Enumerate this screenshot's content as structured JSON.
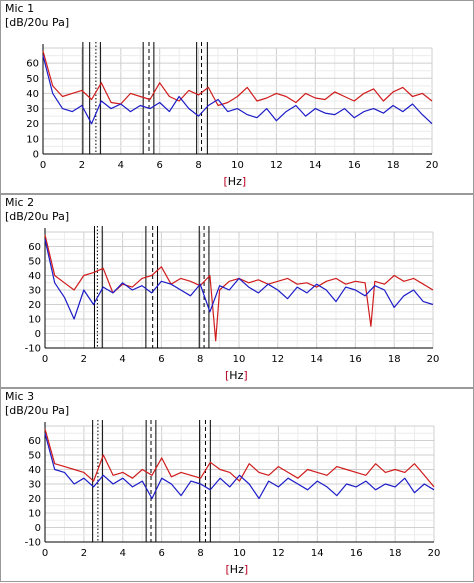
{
  "chart_data": [
    {
      "type": "line",
      "title": "Mic 1",
      "ylabel": "[dB/20u Pa]",
      "xlabel": "Hz",
      "xlim": [
        0,
        20
      ],
      "ylim": [
        0,
        70
      ],
      "xticks": [
        0,
        2,
        4,
        6,
        8,
        10,
        12,
        14,
        16,
        18,
        20
      ],
      "yticks": [
        0,
        10,
        20,
        30,
        40,
        50,
        60
      ],
      "grid": true,
      "series": [
        {
          "color": "#d01c1c",
          "x": [
            0,
            0.5,
            1,
            1.5,
            2,
            2.5,
            3,
            3.5,
            4,
            4.5,
            5,
            5.5,
            6,
            6.5,
            7,
            7.5,
            8,
            8.5,
            9,
            9.5,
            10,
            10.5,
            11,
            11.5,
            12,
            12.5,
            13,
            13.5,
            14,
            14.5,
            15,
            15.5,
            16,
            16.5,
            17,
            17.5,
            18,
            18.5,
            19,
            19.5,
            20
          ],
          "values": [
            68,
            45,
            38,
            40,
            42,
            36,
            47,
            34,
            33,
            40,
            38,
            36,
            47,
            38,
            35,
            42,
            39,
            44,
            32,
            34,
            38,
            44,
            35,
            37,
            40,
            38,
            34,
            40,
            37,
            36,
            41,
            38,
            35,
            40,
            43,
            35,
            41,
            44,
            38,
            40,
            35
          ]
        },
        {
          "color": "#1c1cc8",
          "x": [
            0,
            0.5,
            1,
            1.5,
            2,
            2.5,
            3,
            3.5,
            4,
            4.5,
            5,
            5.5,
            6,
            6.5,
            7,
            7.5,
            8,
            8.5,
            9,
            9.5,
            10,
            10.5,
            11,
            11.5,
            12,
            12.5,
            13,
            13.5,
            14,
            14.5,
            15,
            15.5,
            16,
            16.5,
            17,
            17.5,
            18,
            18.5,
            19,
            19.5,
            20
          ],
          "values": [
            65,
            40,
            30,
            28,
            32,
            20,
            35,
            30,
            33,
            28,
            32,
            30,
            34,
            28,
            38,
            30,
            25,
            32,
            36,
            28,
            30,
            26,
            24,
            30,
            22,
            28,
            32,
            25,
            30,
            27,
            26,
            30,
            24,
            28,
            30,
            27,
            32,
            28,
            33,
            26,
            20
          ]
        }
      ],
      "markers": [
        {
          "x": 2.05,
          "style": "solid"
        },
        {
          "x": 2.4,
          "style": "solid"
        },
        {
          "x": 2.72,
          "style": "dotted"
        },
        {
          "x": 2.95,
          "style": "solid"
        },
        {
          "x": 5.15,
          "style": "solid"
        },
        {
          "x": 5.45,
          "style": "dashed"
        },
        {
          "x": 5.7,
          "style": "solid"
        },
        {
          "x": 7.9,
          "style": "solid"
        },
        {
          "x": 8.15,
          "style": "dashed"
        },
        {
          "x": 8.45,
          "style": "solid"
        }
      ]
    },
    {
      "type": "line",
      "title": "Mic 2",
      "ylabel": "[dB/20u Pa]",
      "xlabel": "Hz",
      "xlim": [
        0,
        20
      ],
      "ylim": [
        -10,
        70
      ],
      "xticks": [
        0,
        2,
        4,
        6,
        8,
        10,
        12,
        14,
        16,
        18,
        20
      ],
      "yticks": [
        -10,
        0,
        10,
        20,
        30,
        40,
        50,
        60
      ],
      "grid": true,
      "series": [
        {
          "color": "#d01c1c",
          "x": [
            0,
            0.5,
            1,
            1.5,
            2,
            2.5,
            3,
            3.5,
            4,
            4.5,
            5,
            5.5,
            6,
            6.5,
            7,
            7.5,
            8,
            8.5,
            8.8,
            9,
            9.5,
            10,
            10.5,
            11,
            11.5,
            12,
            12.5,
            13,
            13.5,
            14,
            14.5,
            15,
            15.5,
            16,
            16.5,
            16.8,
            17,
            17.5,
            18,
            18.5,
            19,
            19.5,
            20
          ],
          "values": [
            68,
            40,
            35,
            30,
            40,
            42,
            45,
            28,
            34,
            32,
            38,
            40,
            46,
            34,
            38,
            36,
            33,
            40,
            -5,
            30,
            36,
            38,
            35,
            37,
            34,
            36,
            38,
            34,
            35,
            32,
            36,
            38,
            34,
            36,
            35,
            5,
            36,
            34,
            40,
            36,
            38,
            34,
            30
          ]
        },
        {
          "color": "#1c1cc8",
          "x": [
            0,
            0.5,
            1,
            1.5,
            2,
            2.5,
            3,
            3.5,
            4,
            4.5,
            5,
            5.5,
            6,
            6.5,
            7,
            7.5,
            8,
            8.5,
            9,
            9.5,
            10,
            10.5,
            11,
            11.5,
            12,
            12.5,
            13,
            13.5,
            14,
            14.5,
            15,
            15.5,
            16,
            16.5,
            17,
            17.5,
            18,
            18.5,
            19,
            19.5,
            20
          ],
          "values": [
            65,
            35,
            25,
            10,
            30,
            20,
            32,
            28,
            35,
            30,
            33,
            28,
            36,
            34,
            30,
            26,
            34,
            15,
            33,
            30,
            38,
            32,
            28,
            34,
            30,
            24,
            32,
            28,
            34,
            30,
            22,
            32,
            30,
            26,
            33,
            30,
            18,
            26,
            30,
            22,
            20
          ]
        }
      ],
      "markers": [
        {
          "x": 2.55,
          "style": "solid"
        },
        {
          "x": 2.7,
          "style": "dotted"
        },
        {
          "x": 2.95,
          "style": "solid"
        },
        {
          "x": 5.2,
          "style": "solid"
        },
        {
          "x": 5.55,
          "style": "dashed"
        },
        {
          "x": 5.8,
          "style": "solid"
        },
        {
          "x": 7.95,
          "style": "solid"
        },
        {
          "x": 8.2,
          "style": "dashed"
        },
        {
          "x": 8.45,
          "style": "solid"
        }
      ]
    },
    {
      "type": "line",
      "title": "Mic 3",
      "ylabel": "[dB/20u Pa]",
      "xlabel": "Hz",
      "xlim": [
        0,
        20
      ],
      "ylim": [
        -10,
        70
      ],
      "xticks": [
        0,
        2,
        4,
        6,
        8,
        10,
        12,
        14,
        16,
        18,
        20
      ],
      "yticks": [
        -10,
        0,
        10,
        20,
        30,
        40,
        50,
        60
      ],
      "grid": true,
      "series": [
        {
          "color": "#d01c1c",
          "x": [
            0,
            0.5,
            1,
            1.5,
            2,
            2.5,
            3,
            3.5,
            4,
            4.5,
            5,
            5.5,
            6,
            6.5,
            7,
            7.5,
            8,
            8.5,
            9,
            9.5,
            10,
            10.5,
            11,
            11.5,
            12,
            12.5,
            13,
            13.5,
            14,
            14.5,
            15,
            15.5,
            16,
            16.5,
            17,
            17.5,
            18,
            18.5,
            19,
            19.5,
            20
          ],
          "values": [
            68,
            44,
            42,
            40,
            38,
            32,
            50,
            36,
            38,
            34,
            40,
            36,
            48,
            35,
            38,
            36,
            34,
            45,
            40,
            38,
            32,
            44,
            38,
            36,
            42,
            38,
            34,
            40,
            38,
            36,
            42,
            40,
            38,
            36,
            44,
            38,
            40,
            38,
            44,
            36,
            28
          ]
        },
        {
          "color": "#1c1cc8",
          "x": [
            0,
            0.5,
            1,
            1.5,
            2,
            2.5,
            3,
            3.5,
            4,
            4.5,
            5,
            5.5,
            6,
            6.5,
            7,
            7.5,
            8,
            8.5,
            9,
            9.5,
            10,
            10.5,
            11,
            11.5,
            12,
            12.5,
            13,
            13.5,
            14,
            14.5,
            15,
            15.5,
            16,
            16.5,
            17,
            17.5,
            18,
            18.5,
            19,
            19.5,
            20
          ],
          "values": [
            65,
            40,
            38,
            30,
            34,
            28,
            36,
            30,
            34,
            28,
            32,
            20,
            34,
            30,
            22,
            32,
            30,
            26,
            34,
            28,
            36,
            30,
            20,
            32,
            28,
            34,
            30,
            26,
            32,
            28,
            22,
            30,
            28,
            32,
            26,
            30,
            28,
            34,
            24,
            30,
            26
          ]
        }
      ],
      "markers": [
        {
          "x": 2.45,
          "style": "solid"
        },
        {
          "x": 2.72,
          "style": "dotted"
        },
        {
          "x": 2.95,
          "style": "solid"
        },
        {
          "x": 5.2,
          "style": "solid"
        },
        {
          "x": 5.45,
          "style": "dashed"
        },
        {
          "x": 5.7,
          "style": "solid"
        },
        {
          "x": 7.95,
          "style": "solid"
        },
        {
          "x": 8.25,
          "style": "dashed"
        },
        {
          "x": 8.5,
          "style": "solid"
        }
      ]
    }
  ]
}
